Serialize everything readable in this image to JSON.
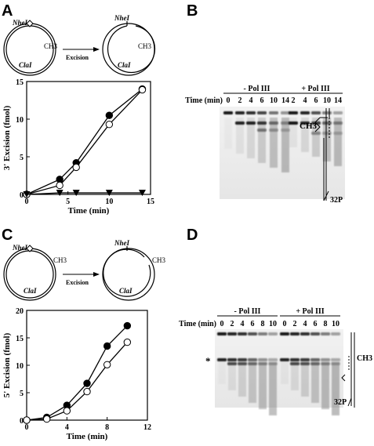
{
  "panels": {
    "A": {
      "letter": "A",
      "diagram": {
        "site1": "NheI",
        "site2": "ClaI",
        "mod": "CH3",
        "arrow": "Excision"
      },
      "chart_data": {
        "type": "line",
        "ylabel": "3' Excision (fmol)",
        "xlabel": "Time (min)",
        "xlim": [
          0,
          15
        ],
        "ylim": [
          0,
          15
        ],
        "xticks": [
          0,
          5,
          10,
          15
        ],
        "yticks": [
          0,
          5,
          10,
          15
        ],
        "series": [
          {
            "marker": "filled-circle",
            "x": [
              0,
              4,
              6,
              10,
              14
            ],
            "y": [
              0,
              2,
              4.2,
              10.5,
              14
            ]
          },
          {
            "marker": "open-circle",
            "x": [
              0,
              4,
              6,
              10,
              14
            ],
            "y": [
              0,
              1.2,
              3.6,
              9.3,
              13.9
            ]
          },
          {
            "marker": "filled-triangle",
            "x": [
              0,
              4,
              6,
              10,
              14
            ],
            "y": [
              0,
              0.2,
              0.2,
              0.2,
              0.2
            ]
          }
        ]
      }
    },
    "B": {
      "letter": "B",
      "timeLabel": "Time (min)",
      "groups": [
        {
          "label": "- Pol III",
          "times": [
            "0",
            "2",
            "4",
            "6",
            "10",
            "14"
          ]
        },
        {
          "label": "+ Pol III",
          "times": [
            "2",
            "4",
            "6",
            "10",
            "14"
          ]
        }
      ],
      "mod": "CH3",
      "probe": "32P"
    },
    "C": {
      "letter": "C",
      "diagram": {
        "site1": "NheI",
        "site2": "ClaI",
        "mod": "CH3",
        "arrow": "Excision"
      },
      "chart_data": {
        "type": "line",
        "ylabel": "5' Excision (fmol)",
        "xlabel": "Time (min)",
        "xlim": [
          0,
          12
        ],
        "ylim": [
          0,
          20
        ],
        "xticks": [
          0,
          4,
          8,
          12
        ],
        "yticks": [
          0,
          5,
          10,
          15,
          20
        ],
        "series": [
          {
            "marker": "filled-circle",
            "x": [
              0,
              2,
              4,
              6,
              8,
              10
            ],
            "y": [
              0,
              0.5,
              2.7,
              6.7,
              13.5,
              17.2
            ]
          },
          {
            "marker": "open-circle",
            "x": [
              0,
              2,
              4,
              6,
              8,
              10
            ],
            "y": [
              0,
              0.2,
              1.7,
              5.2,
              10.1,
              14.2
            ]
          }
        ]
      }
    },
    "D": {
      "letter": "D",
      "timeLabel": "Time (min)",
      "groups": [
        {
          "label": "- Pol III",
          "times": [
            "0",
            "2",
            "4",
            "6",
            "8",
            "10"
          ]
        },
        {
          "label": "+ Pol III",
          "times": [
            "0",
            "2",
            "4",
            "6",
            "8",
            "10"
          ]
        }
      ],
      "mod": "CH3",
      "probe": "32P",
      "star": "*"
    }
  }
}
